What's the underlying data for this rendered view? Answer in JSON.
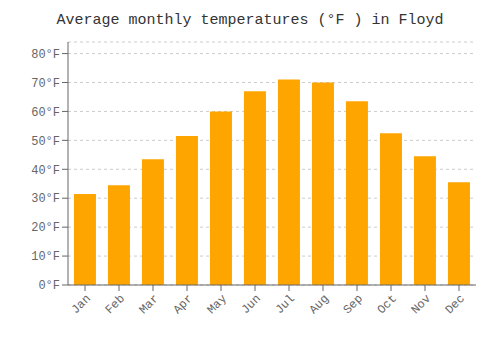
{
  "chart_data": {
    "type": "bar",
    "title": "Average monthly temperatures (°F ) in Floyd",
    "categories": [
      "Jan",
      "Feb",
      "Mar",
      "Apr",
      "May",
      "Jun",
      "Jul",
      "Aug",
      "Sep",
      "Oct",
      "Nov",
      "Dec"
    ],
    "values": [
      31.5,
      34.5,
      43.5,
      51.5,
      60.0,
      67.0,
      71.0,
      70.0,
      63.5,
      52.5,
      44.5,
      35.5
    ],
    "color": "#FFA500",
    "ylim": [
      0,
      84
    ],
    "yticks": [
      {
        "value": 0,
        "label": "0°F"
      },
      {
        "value": 10,
        "label": "10°F"
      },
      {
        "value": 20,
        "label": "20°F"
      },
      {
        "value": 30,
        "label": "30°F"
      },
      {
        "value": 40,
        "label": "40°F"
      },
      {
        "value": 50,
        "label": "50°F"
      },
      {
        "value": 60,
        "label": "60°F"
      },
      {
        "value": 70,
        "label": "70°F"
      },
      {
        "value": 80,
        "label": "80°F"
      }
    ],
    "grid": true
  }
}
